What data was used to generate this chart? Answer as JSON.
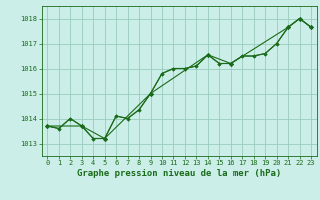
{
  "title": "Graphe pression niveau de la mer (hPa)",
  "bg_color": "#cceee8",
  "grid_color": "#99ccbb",
  "line_color": "#1a6b1a",
  "xlim": [
    -0.5,
    23.5
  ],
  "ylim": [
    1012.5,
    1018.5
  ],
  "yticks": [
    1013,
    1014,
    1015,
    1016,
    1017,
    1018
  ],
  "xticks": [
    0,
    1,
    2,
    3,
    4,
    5,
    6,
    7,
    8,
    9,
    10,
    11,
    12,
    13,
    14,
    15,
    16,
    17,
    18,
    19,
    20,
    21,
    22,
    23
  ],
  "series1_x": [
    0,
    1,
    2,
    3,
    4,
    5,
    6,
    7,
    8,
    9,
    10,
    11,
    12,
    13,
    14,
    15,
    16,
    17,
    18,
    19,
    20,
    21,
    22,
    23
  ],
  "series1_y": [
    1013.7,
    1013.6,
    1014.0,
    1013.7,
    1013.2,
    1013.2,
    1014.1,
    1014.0,
    1014.35,
    1015.0,
    1015.8,
    1016.0,
    1016.0,
    1016.1,
    1016.55,
    1016.2,
    1016.2,
    1016.5,
    1016.5,
    1016.6,
    1017.0,
    1017.65,
    1018.0,
    1017.65
  ],
  "series2_x": [
    0,
    3,
    5,
    9,
    14,
    16,
    21,
    22,
    23
  ],
  "series2_y": [
    1013.7,
    1013.7,
    1013.2,
    1015.0,
    1016.55,
    1016.2,
    1017.65,
    1018.0,
    1017.65
  ],
  "series3_x": [
    0,
    1,
    2,
    3,
    4,
    5,
    6,
    7,
    8,
    9,
    10,
    11,
    12,
    13,
    14,
    15,
    16,
    17,
    18,
    19,
    20,
    21,
    22,
    23
  ],
  "series3_y": [
    1013.7,
    1013.6,
    1014.0,
    1013.7,
    1013.2,
    1013.2,
    1014.1,
    1014.0,
    1014.35,
    1015.0,
    1015.8,
    1016.0,
    1016.0,
    1016.1,
    1016.55,
    1016.2,
    1016.2,
    1016.5,
    1016.5,
    1016.6,
    1017.0,
    1017.65,
    1018.0,
    1017.65
  ],
  "title_fontsize": 6.5,
  "tick_fontsize": 5.0
}
